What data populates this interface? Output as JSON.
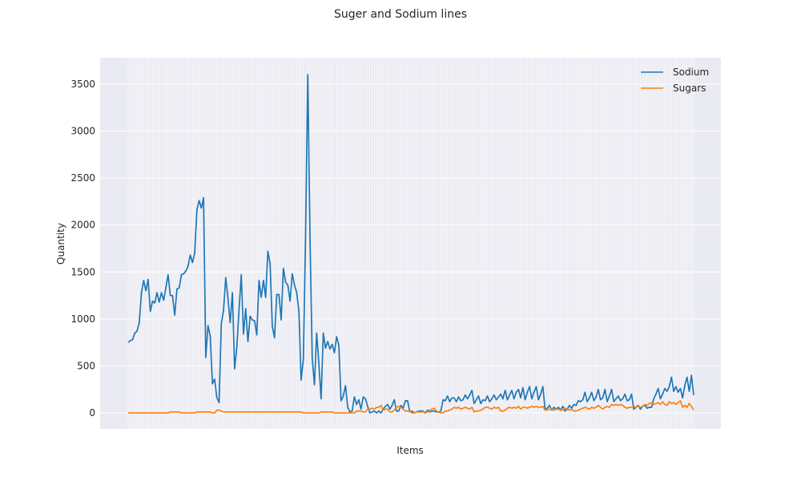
{
  "chart_data": {
    "type": "line",
    "title": "Suger and Sodium lines",
    "xlabel": "Items",
    "ylabel": "Quantity",
    "ylim": [
      -170,
      3780
    ],
    "yticks": [
      0,
      500,
      1000,
      1500,
      2000,
      2500,
      3000,
      3500
    ],
    "grid": true,
    "legend_position": "top-right",
    "series": [
      {
        "name": "Sodium",
        "color": "#1f77b4",
        "values": [
          750,
          770,
          780,
          850,
          870,
          960,
          1280,
          1410,
          1300,
          1420,
          1080,
          1190,
          1170,
          1280,
          1180,
          1280,
          1200,
          1330,
          1470,
          1250,
          1250,
          1040,
          1320,
          1330,
          1470,
          1480,
          1510,
          1560,
          1680,
          1600,
          1700,
          2160,
          2260,
          2180,
          2290,
          590,
          930,
          820,
          310,
          360,
          160,
          110,
          950,
          1090,
          1440,
          1220,
          960,
          1280,
          470,
          700,
          1100,
          1470,
          840,
          1110,
          760,
          1030,
          990,
          980,
          830,
          1410,
          1230,
          1410,
          1230,
          1720,
          1590,
          920,
          800,
          1260,
          1260,
          990,
          1540,
          1390,
          1360,
          1190,
          1480,
          1360,
          1280,
          1080,
          350,
          570,
          1890,
          3600,
          1860,
          580,
          300,
          850,
          520,
          150,
          850,
          690,
          760,
          680,
          730,
          640,
          810,
          720,
          130,
          180,
          290,
          60,
          10,
          20,
          170,
          90,
          140,
          40,
          170,
          150,
          70,
          0,
          10,
          20,
          0,
          20,
          0,
          40,
          70,
          90,
          40,
          80,
          140,
          20,
          20,
          80,
          50,
          130,
          130,
          10,
          20,
          0,
          10,
          20,
          20,
          20,
          0,
          30,
          10,
          20,
          20,
          10,
          10,
          20,
          140,
          130,
          180,
          120,
          160,
          160,
          120,
          170,
          130,
          140,
          190,
          150,
          190,
          240,
          100,
          140,
          180,
          100,
          140,
          130,
          180,
          120,
          150,
          190,
          140,
          170,
          200,
          150,
          240,
          140,
          190,
          240,
          150,
          220,
          250,
          160,
          270,
          140,
          220,
          280,
          150,
          220,
          280,
          140,
          200,
          280,
          40,
          50,
          80,
          30,
          60,
          40,
          60,
          30,
          70,
          20,
          40,
          80,
          50,
          90,
          80,
          130,
          120,
          140,
          220,
          120,
          160,
          220,
          130,
          170,
          250,
          140,
          160,
          250,
          120,
          180,
          250,
          120,
          150,
          180,
          130,
          150,
          200,
          130,
          140,
          200,
          40,
          60,
          80,
          40,
          70,
          80,
          50,
          60,
          60,
          150,
          200,
          260,
          150,
          200,
          260,
          230,
          280,
          380,
          230,
          280,
          220,
          260,
          160,
          290,
          380,
          230,
          400,
          190
        ]
      },
      {
        "name": "Sugars",
        "color": "#ff7f0e",
        "values": [
          0,
          0,
          0,
          0,
          0,
          0,
          0,
          0,
          0,
          0,
          0,
          0,
          0,
          0,
          0,
          0,
          0,
          0,
          0,
          10,
          10,
          10,
          10,
          10,
          0,
          0,
          0,
          0,
          0,
          0,
          0,
          10,
          10,
          10,
          10,
          10,
          10,
          10,
          0,
          0,
          30,
          30,
          20,
          10,
          10,
          10,
          10,
          10,
          10,
          10,
          10,
          10,
          10,
          10,
          10,
          10,
          10,
          10,
          10,
          10,
          10,
          10,
          10,
          10,
          10,
          10,
          10,
          10,
          10,
          10,
          10,
          10,
          10,
          10,
          10,
          10,
          10,
          10,
          10,
          0,
          0,
          0,
          0,
          0,
          0,
          0,
          0,
          10,
          10,
          10,
          10,
          10,
          10,
          0,
          0,
          0,
          0,
          0,
          0,
          0,
          0,
          0,
          0,
          20,
          20,
          20,
          10,
          10,
          40,
          40,
          50,
          40,
          60,
          60,
          80,
          30,
          40,
          40,
          10,
          10,
          30,
          60,
          70,
          60,
          40,
          20,
          20,
          20,
          0,
          0,
          10,
          10,
          10,
          10,
          10,
          10,
          30,
          40,
          50,
          20,
          10,
          0,
          0,
          20,
          20,
          30,
          40,
          60,
          50,
          60,
          40,
          50,
          60,
          50,
          40,
          60,
          10,
          20,
          20,
          30,
          40,
          60,
          60,
          50,
          40,
          60,
          50,
          60,
          20,
          20,
          30,
          50,
          60,
          50,
          60,
          50,
          70,
          40,
          60,
          60,
          50,
          60,
          70,
          60,
          70,
          60,
          60,
          70,
          30,
          30,
          40,
          40,
          30,
          40,
          40,
          30,
          30,
          50,
          40,
          30,
          40,
          20,
          20,
          30,
          40,
          50,
          60,
          50,
          40,
          60,
          50,
          60,
          80,
          60,
          40,
          60,
          70,
          60,
          90,
          80,
          90,
          80,
          90,
          80,
          60,
          50,
          60,
          60,
          70,
          60,
          70,
          60,
          70,
          90,
          80,
          100,
          110,
          90,
          100,
          110,
          90,
          120,
          90,
          80,
          120,
          100,
          110,
          90,
          110,
          130,
          60,
          80,
          60,
          100,
          70,
          30
        ]
      }
    ]
  }
}
